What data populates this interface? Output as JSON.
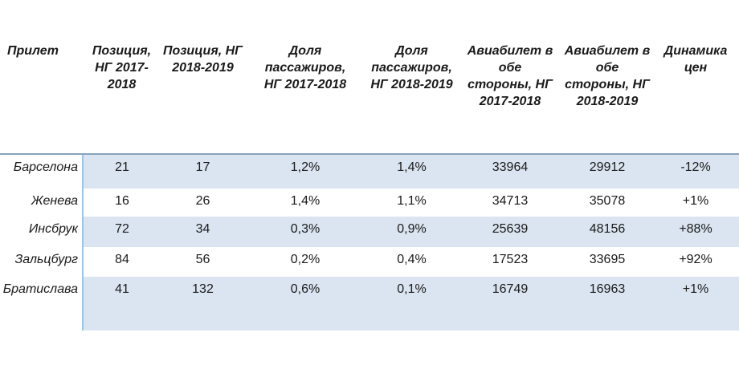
{
  "chart_data": {
    "type": "table",
    "title": "",
    "columns": [
      "Прилет",
      "Позиция,\nНГ 2017-\n2018",
      "Позиция, НГ\n2018-2019",
      "Доля\nпассажиров,\nНГ 2017-2018",
      "Доля\nпассажиров,\nНГ 2018-2019",
      "Авиабилет в\nобе\nстороны, НГ\n2017-2018",
      "Авиабилет в\nобе\nстороны, НГ\n2018-2019",
      "Динамика\nцен"
    ],
    "rows": [
      [
        "Барселона",
        "21",
        "17",
        "1,2%",
        "1,4%",
        "33964",
        "29912",
        "-12%"
      ],
      [
        "Женева",
        "16",
        "26",
        "1,4%",
        "1,1%",
        "34713",
        "35078",
        "+1%"
      ],
      [
        "Инсбрук",
        "72",
        "34",
        "0,3%",
        "0,9%",
        "25639",
        "48156",
        "+88%"
      ],
      [
        "Зальцбург",
        "84",
        "56",
        "0,2%",
        "0,4%",
        "17523",
        "33695",
        "+92%"
      ],
      [
        "Братислава",
        "41",
        "132",
        "0,6%",
        "0,1%",
        "16749",
        "16963",
        "+1%"
      ]
    ],
    "layout": {
      "banded_rows": "odd rows light blue, first column unfilled",
      "header_rule": true,
      "first_column_divider": true
    }
  },
  "colors": {
    "row_band": "#DAE5F1",
    "divider": "#9DC3E6",
    "rule": "#86A3BC",
    "text": "#1A1A1A"
  }
}
